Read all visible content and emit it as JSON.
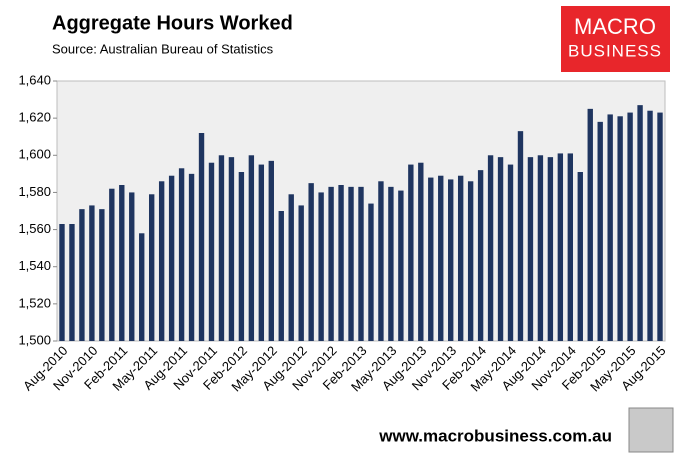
{
  "chart_data": {
    "type": "bar",
    "title": "Aggregate Hours Worked",
    "subtitle": "Source: Australian Bureau of Statistics",
    "logo": [
      "MACRO",
      "BUSINESS"
    ],
    "footer": "www.macrobusiness.com.au",
    "color": "#1f3560",
    "grid": false,
    "categories": [
      "Aug-2010",
      null,
      null,
      "Nov-2010",
      null,
      null,
      "Feb-2011",
      null,
      null,
      "May-2011",
      null,
      null,
      "Aug-2011",
      null,
      null,
      "Nov-2011",
      null,
      null,
      "Feb-2012",
      null,
      null,
      "May-2012",
      null,
      null,
      "Aug-2012",
      null,
      null,
      "Nov-2012",
      null,
      null,
      "Feb-2013",
      null,
      null,
      "May-2013",
      null,
      null,
      "Aug-2013",
      null,
      null,
      "Nov-2013",
      null,
      null,
      "Feb-2014",
      null,
      null,
      "May-2014",
      null,
      null,
      "Aug-2014",
      null,
      null,
      "Nov-2014",
      null,
      null,
      "Feb-2015",
      null,
      null,
      "May-2015",
      null,
      null,
      "Aug-2015"
    ],
    "values": [
      1563,
      1563,
      1571,
      1573,
      1571,
      1582,
      1584,
      1580,
      1558,
      1579,
      1586,
      1589,
      1593,
      1590,
      1612,
      1596,
      1600,
      1599,
      1591,
      1600,
      1595,
      1597,
      1570,
      1579,
      1573,
      1585,
      1580,
      1583,
      1584,
      1583,
      1583,
      1574,
      1586,
      1583,
      1581,
      1595,
      1596,
      1588,
      1589,
      1587,
      1589,
      1586,
      1592,
      1600,
      1599,
      1595,
      1613,
      1599,
      1600,
      1599,
      1601,
      1601,
      1591,
      1625,
      1618,
      1622,
      1621,
      1623,
      1627,
      1624,
      1623
    ],
    "ylim": [
      1500,
      1640
    ],
    "yticks": [
      {
        "value": 1500,
        "label": "1,500"
      },
      {
        "value": 1520,
        "label": "1,520"
      },
      {
        "value": 1540,
        "label": "1,540"
      },
      {
        "value": 1560,
        "label": "1,560"
      },
      {
        "value": 1580,
        "label": "1,580"
      },
      {
        "value": 1600,
        "label": "1,600"
      },
      {
        "value": 1620,
        "label": "1,620"
      },
      {
        "value": 1640,
        "label": "1,640"
      }
    ]
  }
}
